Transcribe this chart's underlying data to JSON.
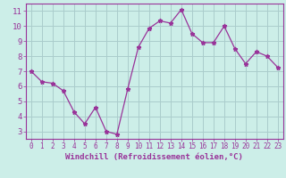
{
  "x_data": [
    0,
    1,
    2,
    3,
    4,
    5,
    6,
    7,
    8,
    9,
    10,
    11,
    12,
    13,
    14,
    15,
    16,
    17,
    18,
    19,
    20,
    21,
    22,
    23
  ],
  "y_data": [
    7.0,
    6.3,
    6.2,
    5.7,
    4.3,
    3.5,
    4.6,
    3.0,
    2.8,
    5.8,
    8.6,
    9.85,
    10.35,
    10.2,
    11.1,
    9.5,
    8.9,
    8.9,
    10.0,
    8.5,
    7.5,
    8.3,
    8.0,
    7.25
  ],
  "line_color": "#993399",
  "marker": "*",
  "marker_size": 3.5,
  "background_color": "#cceee8",
  "grid_color": "#aacccc",
  "xlabel": "Windchill (Refroidissement éolien,°C)",
  "xlabel_color": "#993399",
  "ylim": [
    2.5,
    11.5
  ],
  "xlim": [
    -0.5,
    23.5
  ],
  "yticks": [
    3,
    4,
    5,
    6,
    7,
    8,
    9,
    10,
    11
  ],
  "xticks": [
    0,
    1,
    2,
    3,
    4,
    5,
    6,
    7,
    8,
    9,
    10,
    11,
    12,
    13,
    14,
    15,
    16,
    17,
    18,
    19,
    20,
    21,
    22,
    23
  ],
  "tick_color": "#993399",
  "font": "monospace",
  "xlabel_fontsize": 6.5,
  "tick_fontsize_x": 5.5,
  "tick_fontsize_y": 6.5
}
